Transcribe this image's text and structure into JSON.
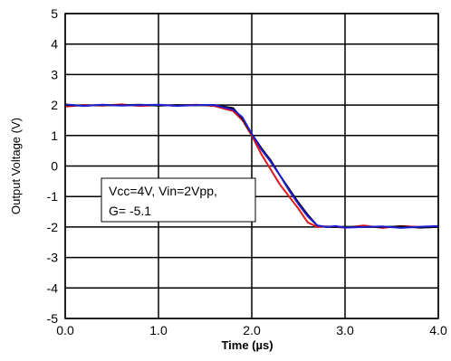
{
  "chart_data": {
    "type": "line",
    "xlabel": "Time (µs)",
    "ylabel": "Output Voltage (V)",
    "xlim": [
      0.0,
      4.0
    ],
    "ylim": [
      -5,
      5
    ],
    "x_ticks": [
      "0.0",
      "1.0",
      "2.0",
      "3.0",
      "4.0"
    ],
    "y_ticks": [
      "5",
      "4",
      "3",
      "2",
      "1",
      "0",
      "-1",
      "-2",
      "-3",
      "-4",
      "-5"
    ],
    "grid": true,
    "annotation": {
      "line1": "Vcc=4V, Vin=2Vpp,",
      "line2": "G= -5.1"
    },
    "series": [
      {
        "color": "#e8141c",
        "x": [
          0.0,
          0.2,
          0.4,
          0.6,
          0.8,
          1.0,
          1.2,
          1.4,
          1.6,
          1.8,
          1.9,
          2.0,
          2.1,
          2.2,
          2.3,
          2.4,
          2.5,
          2.6,
          2.7,
          2.8,
          2.9,
          3.0,
          3.2,
          3.4,
          3.6,
          3.8,
          4.0
        ],
        "y": [
          1.95,
          2.0,
          1.98,
          2.02,
          1.97,
          2.0,
          1.98,
          2.01,
          1.97,
          1.8,
          1.5,
          1.0,
          0.4,
          -0.1,
          -0.6,
          -1.0,
          -1.4,
          -1.85,
          -2.0,
          -1.98,
          -2.0,
          -2.02,
          -1.95,
          -2.03,
          -1.97,
          -2.0,
          -1.98
        ]
      },
      {
        "color": "#000000",
        "x": [
          0.0,
          0.2,
          0.4,
          0.6,
          0.8,
          1.0,
          1.2,
          1.4,
          1.6,
          1.8,
          1.9,
          2.0,
          2.1,
          2.2,
          2.3,
          2.4,
          2.5,
          2.6,
          2.7,
          2.8,
          2.9,
          3.0,
          3.2,
          3.4,
          3.6,
          3.8,
          4.0
        ],
        "y": [
          2.0,
          1.98,
          2.0,
          1.99,
          2.01,
          1.98,
          2.0,
          1.99,
          2.0,
          1.9,
          1.55,
          1.05,
          0.6,
          0.2,
          -0.3,
          -0.75,
          -1.2,
          -1.6,
          -1.95,
          -2.0,
          -2.0,
          -1.99,
          -2.0,
          -2.0,
          -1.98,
          -2.02,
          -2.0
        ]
      },
      {
        "color": "#1f1fd0",
        "x": [
          0.0,
          0.2,
          0.4,
          0.6,
          0.8,
          1.0,
          1.2,
          1.4,
          1.6,
          1.8,
          1.9,
          2.0,
          2.1,
          2.2,
          2.3,
          2.4,
          2.5,
          2.6,
          2.7,
          2.8,
          2.9,
          3.0,
          3.2,
          3.4,
          3.6,
          3.8,
          4.0
        ],
        "y": [
          2.02,
          1.97,
          2.01,
          1.98,
          2.0,
          2.01,
          1.97,
          2.0,
          2.0,
          1.85,
          1.6,
          1.05,
          0.55,
          0.15,
          -0.3,
          -0.8,
          -1.25,
          -1.65,
          -1.95,
          -2.0,
          -1.97,
          -2.02,
          -2.0,
          -1.98,
          -2.03,
          -1.99,
          -1.97
        ]
      }
    ]
  }
}
